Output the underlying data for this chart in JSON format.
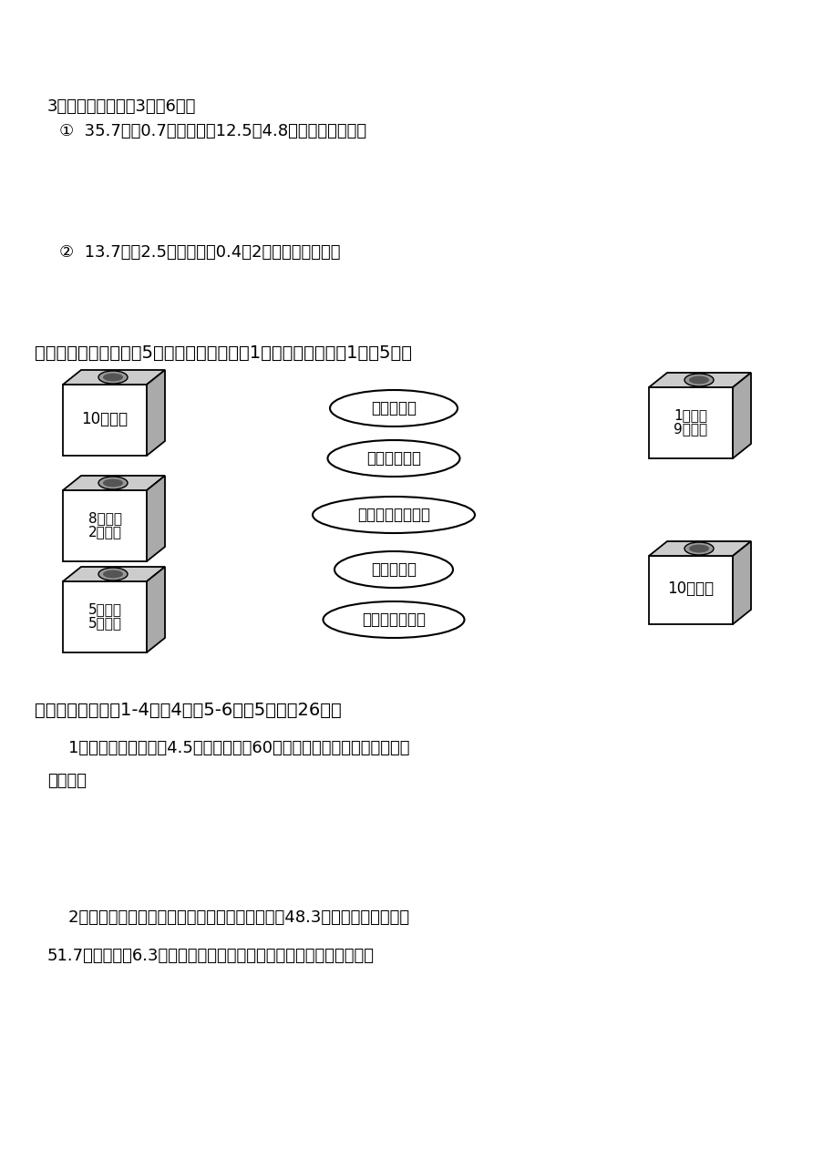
{
  "bg_color": "#ffffff",
  "text_color": "#000000",
  "section3_title": "3．列式计算（每个3分共6分）",
  "q1_text": "①  35.7除以0.7的商，加上12.5与4.8的积，和是多少？",
  "q2_text": "②  13.7减去2.5的差，除以0.4与2的积，商是多少？",
  "section5_title": "五．连一连，从下面的5个盒子里，分别摸出1个球。（每个连线1分计5分）",
  "ovals": [
    "可能是白球",
    "很可能是白球",
    "根本不可能是白球",
    "一定是白球",
    "不太可能是白球"
  ],
  "section6_title": "六．解决问题。（1-4每题4分，5-6每题5分，共26分）",
  "p1_line1": "    1．每一个油桶最多装4.5千克油，购买60千克油，至少要准备多少个这样",
  "p1_line2": "的油桶？",
  "p2_line1": "    2．两辆汽车分别从两地相向开出，甲车每小时行48.3千米，乙车每小时行",
  "p2_line2": "51.7千米，经过6.3小时两车在途中相遇，两地间的公路长多少千米？",
  "box_left1_label1": "10个白球",
  "box_left2_label1": "8个白球",
  "box_left2_label2": "2个黄球",
  "box_left3_label1": "5个白球",
  "box_left3_label2": "5个黄球",
  "box_right1_label1": "1个白球",
  "box_right1_label2": "9个黄球",
  "box_right2_label1": "10个黄球"
}
